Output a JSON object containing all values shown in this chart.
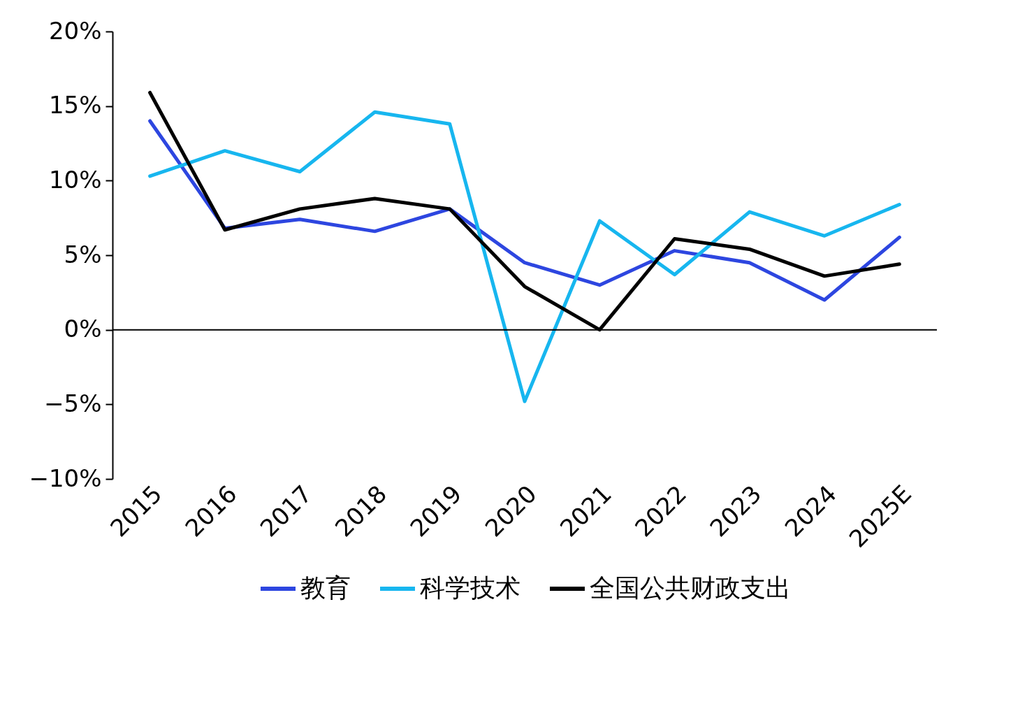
{
  "chart_data": {
    "type": "line",
    "categories": [
      "2015",
      "2016",
      "2017",
      "2018",
      "2019",
      "2020",
      "2021",
      "2022",
      "2023",
      "2024",
      "2025E"
    ],
    "series": [
      {
        "name": "教育",
        "color": "#2d46e0",
        "values": [
          14.0,
          6.8,
          7.4,
          6.6,
          8.1,
          4.5,
          3.0,
          5.3,
          4.5,
          2.0,
          6.2
        ]
      },
      {
        "name": "科学技术",
        "color": "#17b6ef",
        "values": [
          10.3,
          12.0,
          10.6,
          14.6,
          13.8,
          -4.8,
          7.3,
          3.7,
          7.9,
          6.3,
          8.4
        ]
      },
      {
        "name": "全国公共财政支出",
        "color": "#000000",
        "values": [
          15.9,
          6.7,
          8.1,
          8.8,
          8.1,
          2.9,
          0.0,
          6.1,
          5.4,
          3.6,
          4.4
        ]
      }
    ],
    "ylim": [
      -10,
      20
    ],
    "yticks": [
      {
        "value": -10,
        "label": "−10%"
      },
      {
        "value": -5,
        "label": "−5%"
      },
      {
        "value": 0,
        "label": "0%"
      },
      {
        "value": 5,
        "label": "5%"
      },
      {
        "value": 10,
        "label": "10%"
      },
      {
        "value": 15,
        "label": "15%"
      },
      {
        "value": 20,
        "label": "20%"
      }
    ],
    "ref_lines": [
      {
        "axis": "y",
        "value": 0,
        "color": "#000000"
      }
    ],
    "grid": false,
    "legend": "bottom",
    "marker": "none",
    "line_style": "solid"
  }
}
